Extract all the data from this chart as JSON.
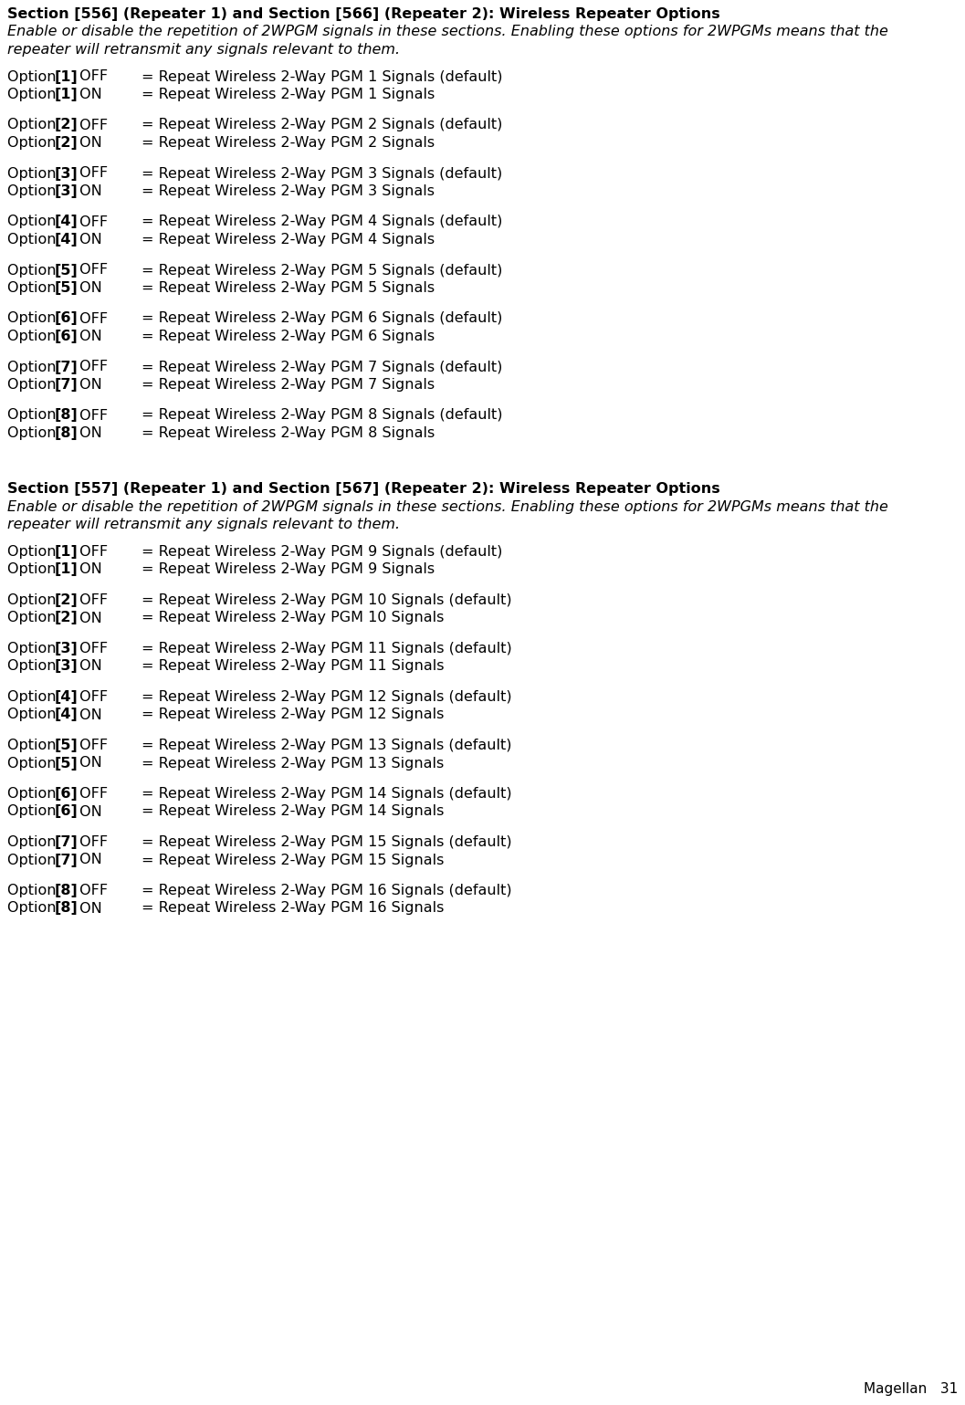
{
  "background_color": "#ffffff",
  "text_color": "#000000",
  "section1_header": "Section [556] (Repeater 1) and Section [566] (Repeater 2): Wireless Repeater Options",
  "section1_italic_line1": "Enable or disable the repetition of 2WPGM signals in these sections. Enabling these options for 2WPGMs means that the",
  "section1_italic_line2": "repeater will retransmit any signals relevant to them.",
  "section2_header": "Section [557] (Repeater 1) and Section [567] (Repeater 2): Wireless Repeater Options",
  "section2_italic_line1": "Enable or disable the repetition of 2WPGM signals in these sections. Enabling these options for 2WPGMs means that the",
  "section2_italic_line2": "repeater will retransmit any signals relevant to them.",
  "footer_text": "Magellan   31",
  "pgm_nums_1": [
    1,
    2,
    3,
    4,
    5,
    6,
    7,
    8
  ],
  "pgm_nums_2": [
    9,
    10,
    11,
    12,
    13,
    14,
    15,
    16
  ],
  "opt_nums_2": [
    1,
    2,
    3,
    4,
    5,
    6,
    7,
    8
  ],
  "font_size": 11.5,
  "font_size_footer": 11.0
}
